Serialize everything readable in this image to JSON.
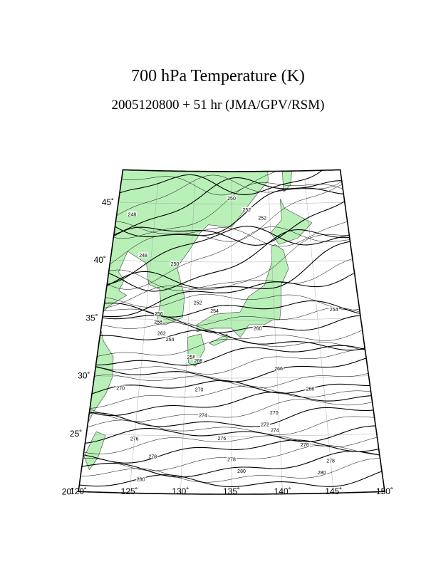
{
  "header": {
    "title": "700 hPa Temperature (K)",
    "subtitle": "2005120800 + 51 hr (JMA/GPV/RSM)"
  },
  "map": {
    "lat_labels": [
      "45˚",
      "40˚",
      "35˚",
      "30˚",
      "25˚",
      "20˚"
    ],
    "lon_labels": [
      "120˚",
      "125˚",
      "130˚",
      "135˚",
      "140˚",
      "145˚",
      "150˚"
    ],
    "contour_labels": [
      "248",
      "248",
      "250",
      "252",
      "250",
      "252",
      "252",
      "254",
      "254",
      "256",
      "258",
      "260",
      "262",
      "264",
      "256",
      "266",
      "266",
      "268",
      "270",
      "270",
      "270",
      "272",
      "274",
      "274",
      "276",
      "276",
      "276",
      "278",
      "278",
      "278",
      "280",
      "280",
      "280"
    ]
  }
}
